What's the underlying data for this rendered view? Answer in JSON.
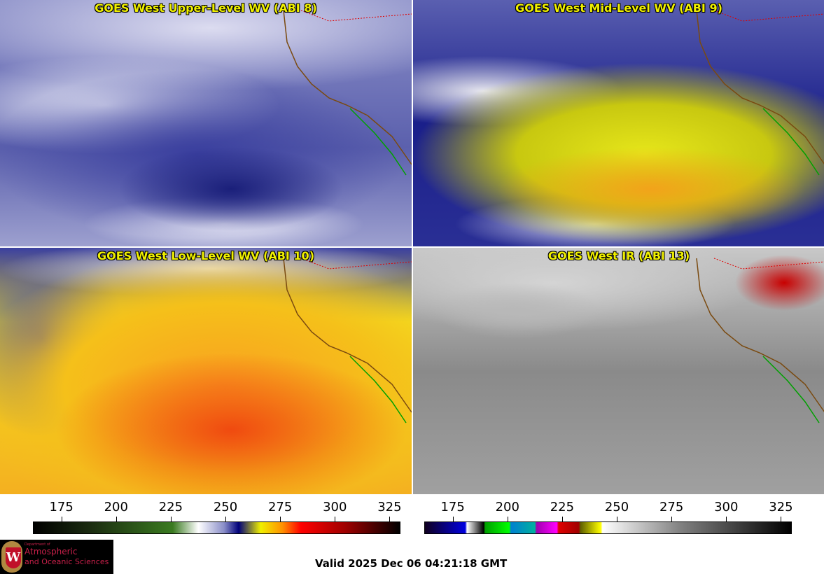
{
  "panels": [
    {
      "title": "GOES West Upper-Level WV (ABI 8)"
    },
    {
      "title": "GOES West Mid-Level WV (ABI 9)"
    },
    {
      "title": "GOES West Low-Level WV (ABI 10)"
    },
    {
      "title": "GOES West IR (ABI 13)"
    }
  ],
  "colorbars": [
    {
      "ticks": [
        "175",
        "200",
        "225",
        "250",
        "275",
        "300",
        "325"
      ],
      "range": [
        162,
        330
      ]
    },
    {
      "ticks": [
        "175",
        "200",
        "225",
        "250",
        "275",
        "300",
        "325"
      ],
      "range": [
        162,
        330
      ]
    }
  ],
  "logo": {
    "line1": "Department of",
    "line2": "Atmospheric",
    "line3": "and Oceanic Sciences",
    "seal": "W"
  },
  "valid_time": "Valid 2025 Dec 06 04:21:18 GMT"
}
